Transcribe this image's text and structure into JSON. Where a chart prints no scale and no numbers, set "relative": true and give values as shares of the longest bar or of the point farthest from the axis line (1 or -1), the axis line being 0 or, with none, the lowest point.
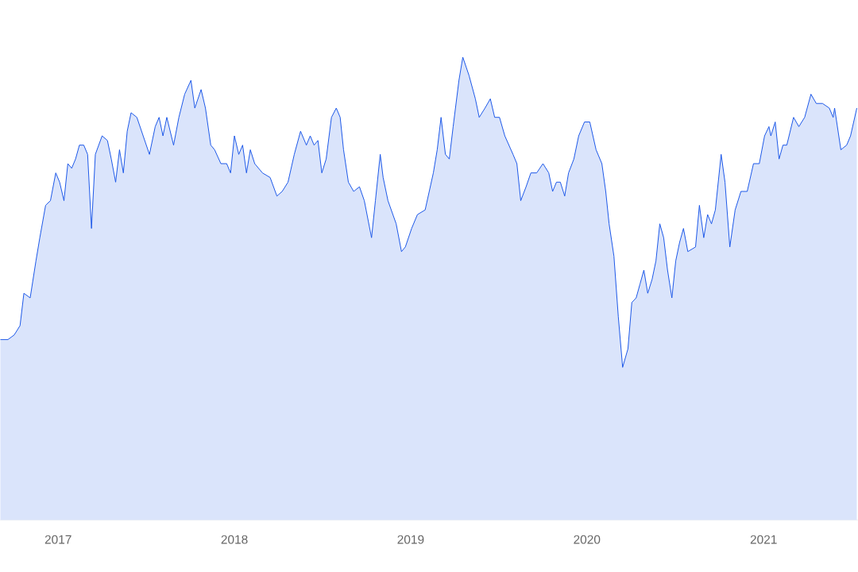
{
  "chart_data": {
    "type": "area",
    "relative": true,
    "color": "#1a56e8",
    "x": [
      "2016-09-03",
      "2016-09-19",
      "2016-10-02",
      "2016-10-14",
      "2016-10-22",
      "2016-11-04",
      "2016-11-16",
      "2016-11-24",
      "2016-12-06",
      "2016-12-16",
      "2016-12-27",
      "2017-01-04",
      "2017-01-13",
      "2017-01-21",
      "2017-01-29",
      "2017-02-06",
      "2017-02-14",
      "2017-02-23",
      "2017-03-03",
      "2017-03-11",
      "2017-03-19",
      "2017-04-02",
      "2017-04-13",
      "2017-04-21",
      "2017-04-30",
      "2017-05-08",
      "2017-05-16",
      "2017-05-24",
      "2017-06-01",
      "2017-06-13",
      "2017-06-26",
      "2017-07-09",
      "2017-07-21",
      "2017-07-29",
      "2017-08-06",
      "2017-08-14",
      "2017-08-28",
      "2017-09-08",
      "2017-09-20",
      "2017-10-03",
      "2017-10-11",
      "2017-10-24",
      "2017-11-02",
      "2017-11-13",
      "2017-11-21",
      "2017-12-04",
      "2017-12-16",
      "2017-12-24",
      "2018-01-01",
      "2018-01-10",
      "2018-01-18",
      "2018-01-26",
      "2018-02-03",
      "2018-02-12",
      "2018-02-28",
      "2018-03-16",
      "2018-03-30",
      "2018-04-10",
      "2018-04-22",
      "2018-05-05",
      "2018-05-18",
      "2018-05-30",
      "2018-06-07",
      "2018-06-15",
      "2018-06-23",
      "2018-07-01",
      "2018-07-10",
      "2018-07-21",
      "2018-07-31",
      "2018-08-08",
      "2018-08-15",
      "2018-08-25",
      "2018-09-05",
      "2018-09-17",
      "2018-09-27",
      "2018-10-12",
      "2018-10-20",
      "2018-10-30",
      "2018-11-05",
      "2018-11-15",
      "2018-12-02",
      "2018-12-13",
      "2018-12-21",
      "2019-01-03",
      "2019-01-15",
      "2019-01-31",
      "2019-02-17",
      "2019-02-25",
      "2019-03-05",
      "2019-03-14",
      "2019-03-22",
      "2019-03-30",
      "2019-04-11",
      "2019-04-19",
      "2019-05-02",
      "2019-05-15",
      "2019-05-23",
      "2019-06-04",
      "2019-06-15",
      "2019-06-24",
      "2019-07-04",
      "2019-07-15",
      "2019-08-01",
      "2019-08-09",
      "2019-08-17",
      "2019-08-28",
      "2019-09-07",
      "2019-09-19",
      "2019-10-02",
      "2019-10-14",
      "2019-10-22",
      "2019-10-30",
      "2019-11-07",
      "2019-11-16",
      "2019-11-24",
      "2019-12-05",
      "2019-12-15",
      "2019-12-27",
      "2020-01-07",
      "2020-01-20",
      "2020-02-01",
      "2020-02-09",
      "2020-02-16",
      "2020-02-26",
      "2020-03-06",
      "2020-03-15",
      "2020-03-26",
      "2020-04-03",
      "2020-04-12",
      "2020-04-20",
      "2020-04-28",
      "2020-05-06",
      "2020-05-15",
      "2020-05-23",
      "2020-05-31",
      "2020-06-08",
      "2020-06-16",
      "2020-06-25",
      "2020-07-03",
      "2020-07-11",
      "2020-07-19",
      "2020-07-28",
      "2020-08-13",
      "2020-08-21",
      "2020-08-30",
      "2020-09-07",
      "2020-09-15",
      "2020-09-23",
      "2020-10-05",
      "2020-10-13",
      "2020-10-23",
      "2020-11-03",
      "2020-11-15",
      "2020-11-28",
      "2020-12-11",
      "2020-12-23",
      "2021-01-03",
      "2021-01-12",
      "2021-01-16",
      "2021-01-25",
      "2021-02-02",
      "2021-02-10",
      "2021-02-18",
      "2021-03-04",
      "2021-03-15",
      "2021-03-27",
      "2021-04-09",
      "2021-04-20",
      "2021-05-03",
      "2021-05-17",
      "2021-05-25",
      "2021-05-28",
      "2021-06-10",
      "2021-06-22",
      "2021-06-30",
      "2021-07-13"
    ],
    "values": [
      0.39,
      0.39,
      0.4,
      0.42,
      0.49,
      0.48,
      0.56,
      0.61,
      0.68,
      0.69,
      0.75,
      0.73,
      0.69,
      0.77,
      0.76,
      0.78,
      0.81,
      0.81,
      0.79,
      0.63,
      0.79,
      0.83,
      0.82,
      0.78,
      0.73,
      0.8,
      0.75,
      0.84,
      0.88,
      0.87,
      0.83,
      0.79,
      0.85,
      0.87,
      0.83,
      0.87,
      0.81,
      0.87,
      0.92,
      0.95,
      0.89,
      0.93,
      0.89,
      0.81,
      0.8,
      0.77,
      0.77,
      0.75,
      0.83,
      0.79,
      0.81,
      0.75,
      0.8,
      0.77,
      0.75,
      0.74,
      0.7,
      0.71,
      0.73,
      0.79,
      0.84,
      0.81,
      0.83,
      0.81,
      0.82,
      0.75,
      0.78,
      0.87,
      0.89,
      0.87,
      0.8,
      0.73,
      0.71,
      0.72,
      0.69,
      0.61,
      0.69,
      0.79,
      0.74,
      0.69,
      0.64,
      0.58,
      0.59,
      0.63,
      0.66,
      0.67,
      0.75,
      0.8,
      0.87,
      0.79,
      0.78,
      0.85,
      0.95,
      1,
      0.96,
      0.91,
      0.87,
      0.89,
      0.91,
      0.87,
      0.87,
      0.83,
      0.79,
      0.77,
      0.69,
      0.72,
      0.75,
      0.75,
      0.77,
      0.75,
      0.71,
      0.73,
      0.73,
      0.7,
      0.75,
      0.78,
      0.83,
      0.86,
      0.86,
      0.8,
      0.77,
      0.71,
      0.64,
      0.57,
      0.44,
      0.33,
      0.37,
      0.47,
      0.48,
      0.51,
      0.54,
      0.49,
      0.52,
      0.56,
      0.64,
      0.61,
      0.54,
      0.48,
      0.56,
      0.6,
      0.63,
      0.58,
      0.59,
      0.68,
      0.61,
      0.66,
      0.64,
      0.67,
      0.79,
      0.73,
      0.59,
      0.67,
      0.71,
      0.71,
      0.77,
      0.77,
      0.83,
      0.85,
      0.83,
      0.86,
      0.78,
      0.81,
      0.81,
      0.87,
      0.85,
      0.87,
      0.92,
      0.9,
      0.9,
      0.89,
      0.87,
      0.89,
      0.8,
      0.81,
      0.83,
      0.89
    ],
    "xlim": [
      "2016-09-03",
      "2021-07-15"
    ],
    "xticks": [
      {
        "value": "2017",
        "label": "2017"
      },
      {
        "value": "2018",
        "label": "2018"
      },
      {
        "value": "2019",
        "label": "2019"
      },
      {
        "value": "2020",
        "label": "2020"
      },
      {
        "value": "2021",
        "label": "2021"
      }
    ]
  }
}
